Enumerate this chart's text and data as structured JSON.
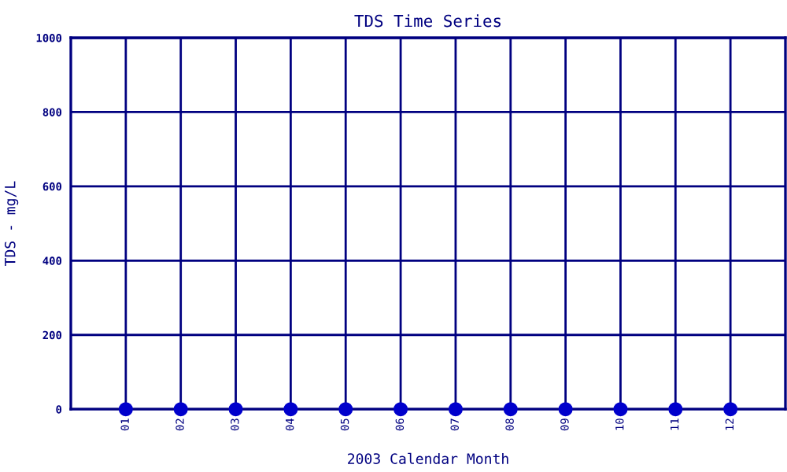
{
  "chart_data": {
    "type": "scatter",
    "title": "TDS Time Series",
    "xlabel": "2003 Calendar Month",
    "ylabel": "TDS - mg/L",
    "categories": [
      "01",
      "02",
      "03",
      "04",
      "05",
      "06",
      "07",
      "08",
      "09",
      "10",
      "11",
      "12"
    ],
    "series": [
      {
        "color": "#0000cc",
        "values": [
          0,
          0,
          0,
          0,
          0,
          0,
          0,
          0,
          0,
          0,
          0,
          0
        ]
      }
    ],
    "ylim": [
      0,
      1000
    ],
    "yticks": [
      0,
      200,
      400,
      600,
      800,
      1000
    ],
    "grid": true,
    "marker": "circle"
  }
}
